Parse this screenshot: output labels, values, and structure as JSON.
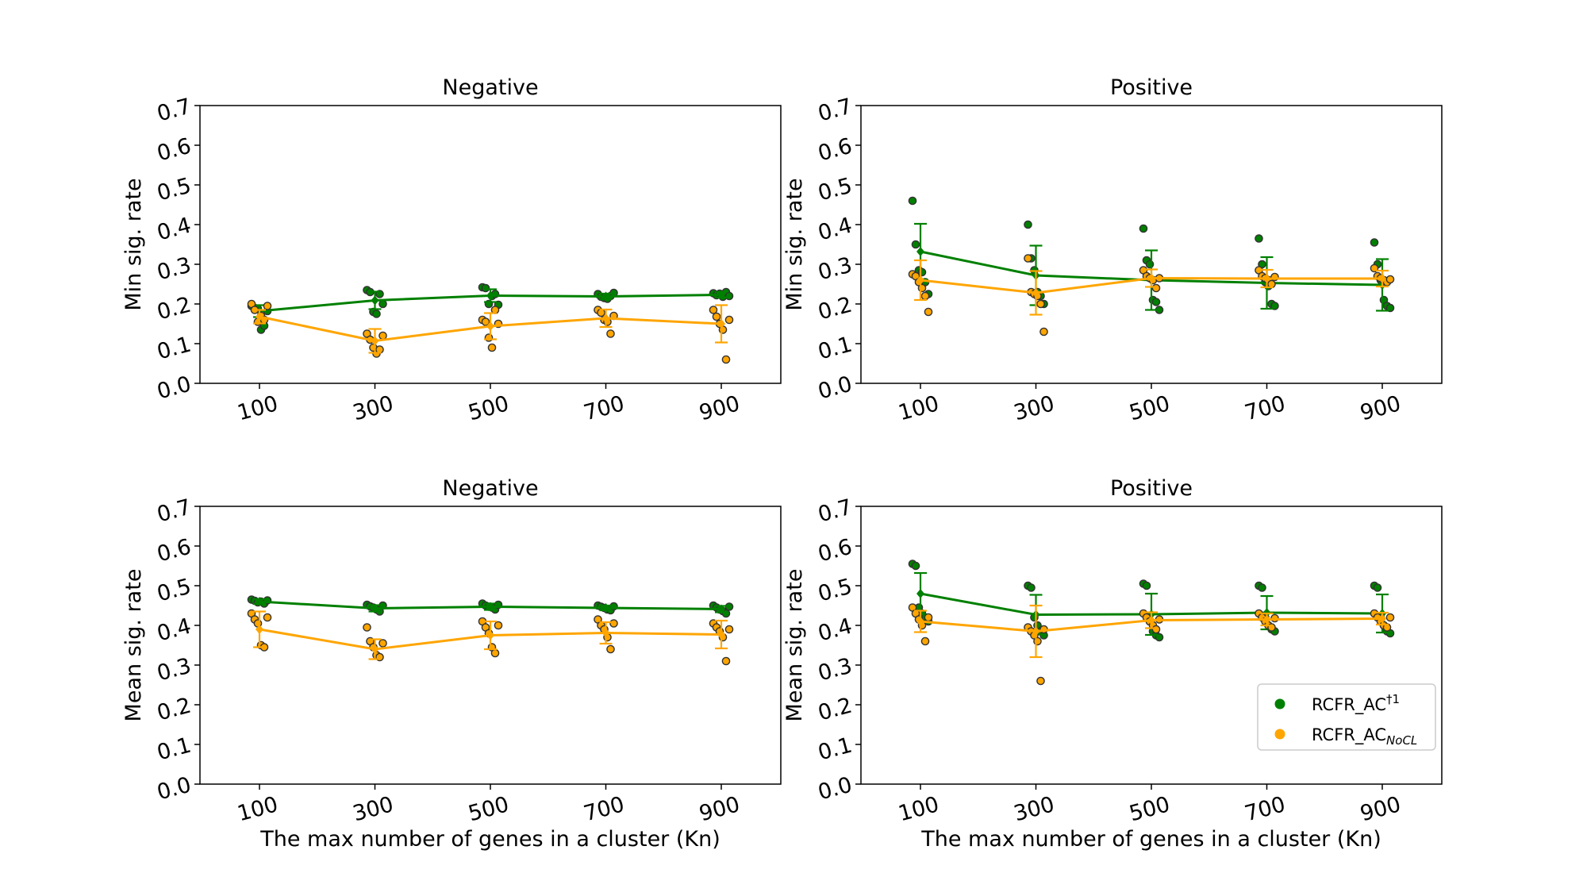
{
  "colors": {
    "green": "#008000",
    "orange": "#FFA500",
    "point_edge": "#333333"
  },
  "chart_data": [
    {
      "type": "line",
      "title": "Negative",
      "xlabel": "",
      "ylabel": "Min sig. rate",
      "categories": [
        "100",
        "300",
        "500",
        "700",
        "900"
      ],
      "yticks": [
        "0.0",
        "0.1",
        "0.2",
        "0.3",
        "0.4",
        "0.5",
        "0.6",
        "0.7"
      ],
      "ylim": [
        0,
        0.7
      ],
      "series": [
        {
          "color_key": "green",
          "mean": [
            0.182,
            0.209,
            0.221,
            0.219,
            0.223
          ],
          "err": [
            0.015,
            0.022,
            0.016,
            0.007,
            0.007
          ],
          "points": [
            [
              0.195,
              0.19,
              0.188,
              0.135,
              0.145,
              0.182
            ],
            [
              0.235,
              0.23,
              0.18,
              0.175,
              0.225,
              0.2
            ],
            [
              0.242,
              0.24,
              0.2,
              0.22,
              0.225,
              0.198
            ],
            [
              0.225,
              0.218,
              0.215,
              0.213,
              0.22,
              0.228
            ],
            [
              0.227,
              0.222,
              0.226,
              0.218,
              0.23,
              0.22
            ]
          ]
        },
        {
          "color_key": "orange",
          "mean": [
            0.168,
            0.107,
            0.144,
            0.164,
            0.15
          ],
          "err": [
            0.017,
            0.03,
            0.033,
            0.022,
            0.047
          ],
          "points": [
            [
              0.2,
              0.185,
              0.155,
              0.17,
              0.16,
              0.195
            ],
            [
              0.125,
              0.11,
              0.09,
              0.075,
              0.085,
              0.12
            ],
            [
              0.16,
              0.155,
              0.115,
              0.09,
              0.185,
              0.15
            ],
            [
              0.185,
              0.178,
              0.16,
              0.155,
              0.125,
              0.17
            ],
            [
              0.185,
              0.168,
              0.15,
              0.135,
              0.06,
              0.16
            ]
          ]
        }
      ]
    },
    {
      "type": "line",
      "title": "Positive",
      "xlabel": "",
      "ylabel": "Min sig. rate",
      "categories": [
        "100",
        "300",
        "500",
        "700",
        "900"
      ],
      "yticks": [
        "0.0",
        "0.1",
        "0.2",
        "0.3",
        "0.4",
        "0.5",
        "0.6",
        "0.7"
      ],
      "ylim": [
        0,
        0.7
      ],
      "series": [
        {
          "color_key": "green",
          "mean": [
            0.332,
            0.272,
            0.26,
            0.253,
            0.248
          ],
          "err": [
            0.07,
            0.075,
            0.075,
            0.065,
            0.065
          ],
          "points": [
            [
              0.46,
              0.35,
              0.285,
              0.28,
              0.255,
              0.225
            ],
            [
              0.4,
              0.315,
              0.285,
              0.23,
              0.22,
              0.2
            ],
            [
              0.39,
              0.31,
              0.3,
              0.21,
              0.205,
              0.185
            ],
            [
              0.365,
              0.3,
              0.255,
              0.245,
              0.2,
              0.195
            ],
            [
              0.355,
              0.3,
              0.26,
              0.21,
              0.195,
              0.19
            ]
          ]
        },
        {
          "color_key": "orange",
          "mean": [
            0.26,
            0.228,
            0.265,
            0.264,
            0.264
          ],
          "err": [
            0.05,
            0.055,
            0.022,
            0.022,
            0.02
          ],
          "points": [
            [
              0.275,
              0.27,
              0.255,
              0.24,
              0.22,
              0.18
            ],
            [
              0.315,
              0.23,
              0.225,
              0.22,
              0.2,
              0.13
            ],
            [
              0.285,
              0.27,
              0.265,
              0.26,
              0.24,
              0.265
            ],
            [
              0.285,
              0.27,
              0.265,
              0.26,
              0.25,
              0.268
            ],
            [
              0.29,
              0.27,
              0.265,
              0.26,
              0.255,
              0.262
            ]
          ]
        }
      ]
    },
    {
      "type": "line",
      "title": "Negative",
      "xlabel": "The max number of genes in a cluster (Kn)",
      "ylabel": "Mean sig. rate",
      "categories": [
        "100",
        "300",
        "500",
        "700",
        "900"
      ],
      "yticks": [
        "0.0",
        "0.1",
        "0.2",
        "0.3",
        "0.4",
        "0.5",
        "0.6",
        "0.7"
      ],
      "ylim": [
        0,
        0.7
      ],
      "series": [
        {
          "color_key": "green",
          "mean": [
            0.46,
            0.443,
            0.447,
            0.444,
            0.441
          ],
          "err": [
            0.006,
            0.008,
            0.008,
            0.006,
            0.008
          ],
          "points": [
            [
              0.465,
              0.462,
              0.458,
              0.46,
              0.455,
              0.463
            ],
            [
              0.452,
              0.448,
              0.445,
              0.44,
              0.435,
              0.45
            ],
            [
              0.455,
              0.45,
              0.447,
              0.445,
              0.44,
              0.452
            ],
            [
              0.45,
              0.447,
              0.444,
              0.44,
              0.438,
              0.448
            ],
            [
              0.45,
              0.445,
              0.44,
              0.436,
              0.43,
              0.447
            ]
          ]
        },
        {
          "color_key": "orange",
          "mean": [
            0.39,
            0.34,
            0.375,
            0.381,
            0.377
          ],
          "err": [
            0.045,
            0.025,
            0.035,
            0.027,
            0.035
          ],
          "points": [
            [
              0.43,
              0.415,
              0.405,
              0.35,
              0.345,
              0.42
            ],
            [
              0.395,
              0.36,
              0.345,
              0.325,
              0.32,
              0.355
            ],
            [
              0.41,
              0.395,
              0.38,
              0.345,
              0.33,
              0.4
            ],
            [
              0.415,
              0.4,
              0.39,
              0.37,
              0.34,
              0.405
            ],
            [
              0.405,
              0.395,
              0.385,
              0.37,
              0.31,
              0.39
            ]
          ]
        }
      ]
    },
    {
      "type": "line",
      "title": "Positive",
      "xlabel": "The max number of genes in a cluster (Kn)",
      "ylabel": "Mean sig. rate",
      "categories": [
        "100",
        "300",
        "500",
        "700",
        "900"
      ],
      "yticks": [
        "0.0",
        "0.1",
        "0.2",
        "0.3",
        "0.4",
        "0.5",
        "0.6",
        "0.7"
      ],
      "ylim": [
        0,
        0.7
      ],
      "series": [
        {
          "color_key": "green",
          "mean": [
            0.48,
            0.427,
            0.428,
            0.432,
            0.43
          ],
          "err": [
            0.052,
            0.05,
            0.052,
            0.042,
            0.048
          ],
          "points": [
            [
              0.555,
              0.55,
              0.445,
              0.43,
              0.42,
              0.41
            ],
            [
              0.5,
              0.495,
              0.42,
              0.4,
              0.385,
              0.375
            ],
            [
              0.505,
              0.5,
              0.41,
              0.385,
              0.375,
              0.37
            ],
            [
              0.5,
              0.495,
              0.42,
              0.4,
              0.39,
              0.385
            ],
            [
              0.5,
              0.495,
              0.42,
              0.4,
              0.385,
              0.38
            ]
          ]
        },
        {
          "color_key": "orange",
          "mean": [
            0.41,
            0.385,
            0.413,
            0.415,
            0.417
          ],
          "err": [
            0.027,
            0.065,
            0.02,
            0.015,
            0.015
          ],
          "points": [
            [
              0.445,
              0.43,
              0.415,
              0.4,
              0.36,
              0.42
            ],
            [
              0.395,
              0.385,
              0.375,
              0.36,
              0.26,
              0.39
            ],
            [
              0.43,
              0.42,
              0.41,
              0.4,
              0.39,
              0.415
            ],
            [
              0.43,
              0.42,
              0.41,
              0.4,
              0.395,
              0.418
            ],
            [
              0.43,
              0.42,
              0.41,
              0.4,
              0.395,
              0.42
            ]
          ]
        }
      ]
    }
  ],
  "legend": {
    "placement": "lower-right",
    "entries": [
      {
        "color_key": "green",
        "label": "RCFR_AC",
        "sup": "†1",
        "sub": ""
      },
      {
        "color_key": "orange",
        "label": "RCFR_AC",
        "sup": "",
        "sub": "NoCL"
      }
    ]
  }
}
